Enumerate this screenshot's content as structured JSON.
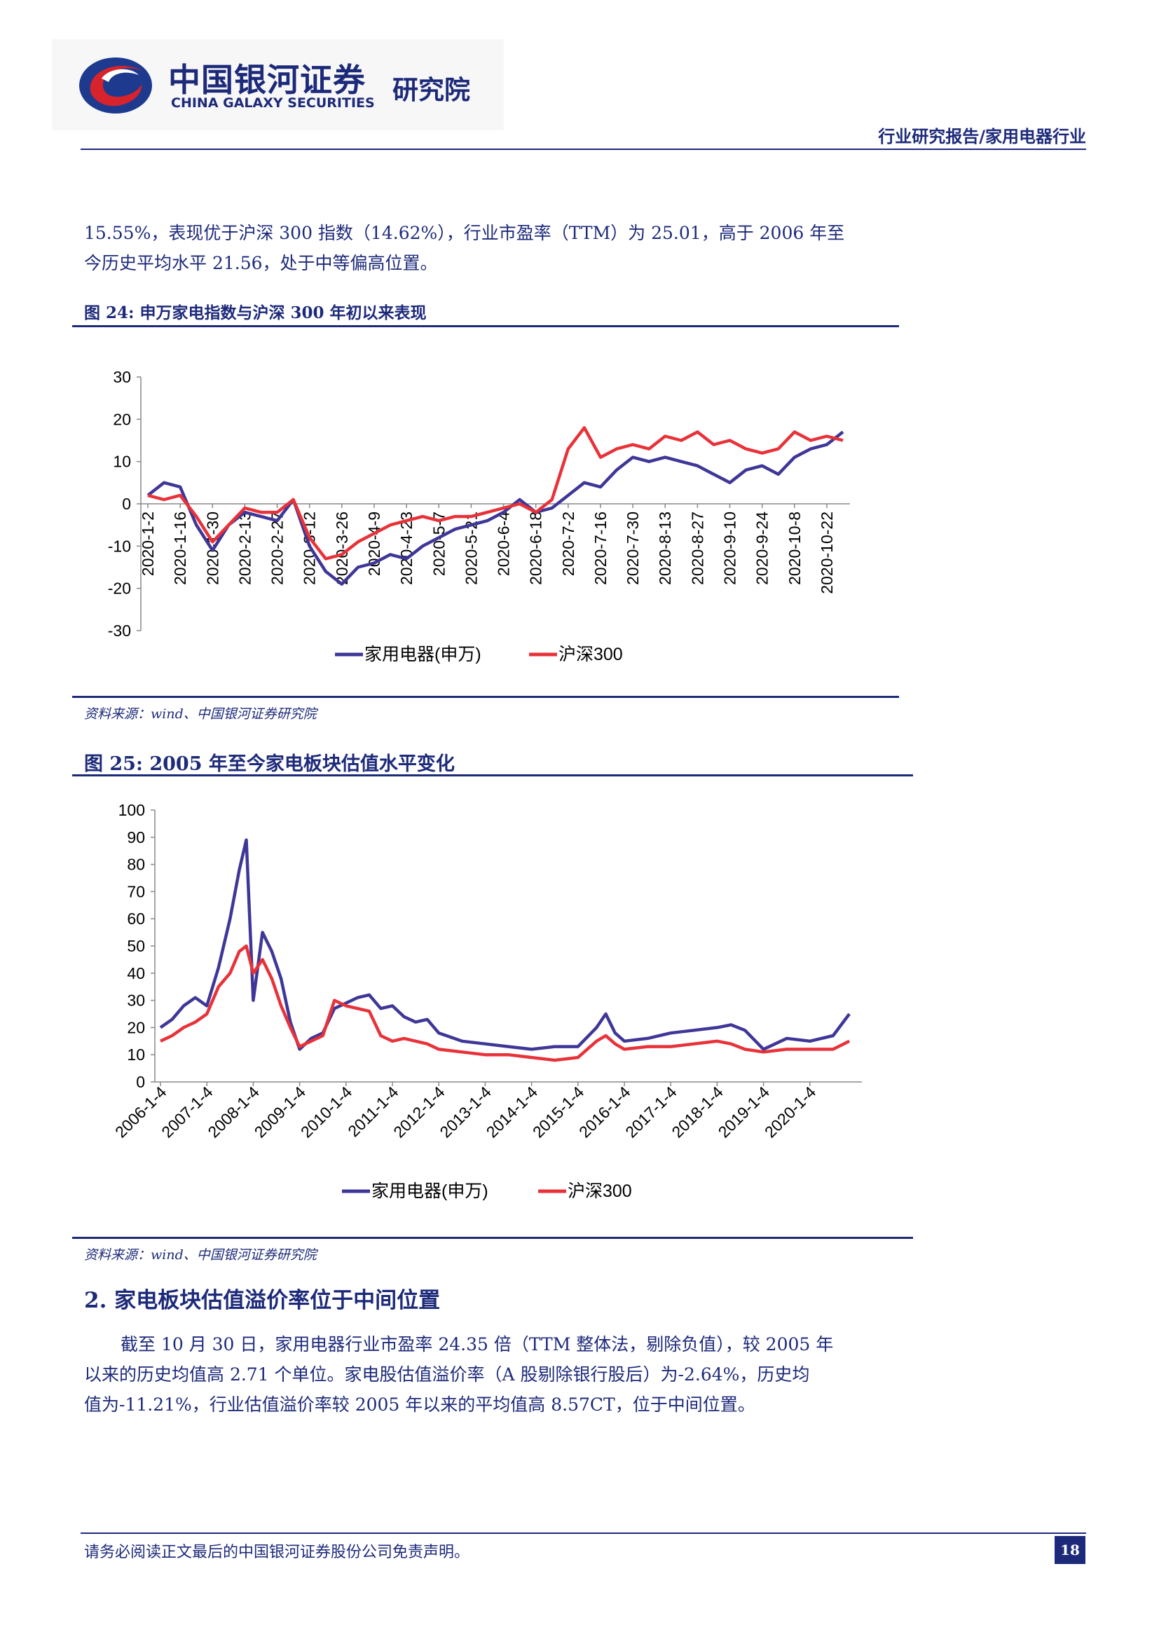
{
  "header": {
    "logo_cn": "中国银河证券",
    "logo_en": "CHINA GALAXY SECURITIES",
    "institute": "研究院",
    "report_type": "行业研究报告/家用电器行业"
  },
  "body": {
    "intro_lines": [
      "15.55%，表现优于沪深 300 指数（14.62%），行业市盈率（TTM）为 25.01，高于 2006 年至",
      "今历史平均水平 21.56，处于中等偏高位置。"
    ],
    "section_heading": "2.  家电板块估值溢价率位于中间位置",
    "section_lines": [
      "截至 10 月 30 日，家用电器行业市盈率 24.35 倍（TTM 整体法，剔除负值），较 2005 年",
      "以来的历史均值高 2.71 个单位。家电股估值溢价率（A 股剔除银行股后）为-2.64%，历史均",
      "值为-11.21%，行业估值溢价率较 2005 年以来的平均值高 8.57CT，位于中间位置。"
    ]
  },
  "figures": [
    {
      "title": "图 24:  申万家电指数与沪深 300 年初以来表现",
      "source": "资料来源：wind、中国银河证券研究院"
    },
    {
      "title": "图 25:  2005 年至今家电板块估值水平变化",
      "source": "资料来源：wind、中国银河证券研究院"
    }
  ],
  "colors": {
    "navy": "#1d2a7a",
    "series_blue": "#3f3797",
    "series_red": "#e8323a"
  },
  "chart_data": [
    {
      "type": "line",
      "title": "",
      "ylim": [
        -30,
        30
      ],
      "yticks": [
        30,
        20,
        10,
        0,
        -10,
        -20,
        -30
      ],
      "xticks": [
        "2020-1-2",
        "2020-1-16",
        "2020-1-30",
        "2020-2-13",
        "2020-2-27",
        "2020-3-12",
        "2020-3-26",
        "2020-4-9",
        "2020-4-23",
        "2020-5-7",
        "2020-5-21",
        "2020-6-4",
        "2020-6-18",
        "2020-7-2",
        "2020-7-16",
        "2020-7-30",
        "2020-8-13",
        "2020-8-27",
        "2020-9-10",
        "2020-9-24",
        "2020-10-8",
        "2020-10-22"
      ],
      "x": [
        "2020-1-2",
        "2020-1-9",
        "2020-1-16",
        "2020-1-23",
        "2020-1-30",
        "2020-2-6",
        "2020-2-13",
        "2020-2-20",
        "2020-2-27",
        "2020-3-5",
        "2020-3-12",
        "2020-3-19",
        "2020-3-26",
        "2020-4-2",
        "2020-4-9",
        "2020-4-16",
        "2020-4-23",
        "2020-4-30",
        "2020-5-7",
        "2020-5-14",
        "2020-5-21",
        "2020-5-28",
        "2020-6-4",
        "2020-6-11",
        "2020-6-18",
        "2020-6-25",
        "2020-7-2",
        "2020-7-9",
        "2020-7-16",
        "2020-7-23",
        "2020-7-30",
        "2020-8-6",
        "2020-8-13",
        "2020-8-20",
        "2020-8-27",
        "2020-9-3",
        "2020-9-10",
        "2020-9-17",
        "2020-9-24",
        "2020-10-1",
        "2020-10-8",
        "2020-10-15",
        "2020-10-22",
        "2020-10-29"
      ],
      "series": [
        {
          "name": "家用电器(申万)",
          "values": [
            2,
            5,
            4,
            -5,
            -11,
            -5,
            -2,
            -3,
            -4,
            1,
            -10,
            -16,
            -19,
            -15,
            -14,
            -12,
            -13,
            -10,
            -8,
            -6,
            -5,
            -4,
            -2,
            1,
            -2,
            -1,
            2,
            5,
            4,
            8,
            11,
            10,
            11,
            10,
            9,
            7,
            5,
            8,
            9,
            7,
            11,
            13,
            14,
            17
          ]
        },
        {
          "name": "沪深300",
          "values": [
            2,
            1,
            2,
            -3,
            -9,
            -5,
            -1,
            -2,
            -2,
            1,
            -8,
            -13,
            -12,
            -9,
            -7,
            -5,
            -4,
            -3,
            -4,
            -3,
            -3,
            -2,
            -1,
            0,
            -2,
            1,
            13,
            18,
            11,
            13,
            14,
            13,
            16,
            15,
            17,
            14,
            15,
            13,
            12,
            13,
            17,
            15,
            16,
            15
          ]
        }
      ],
      "legend": "bottom"
    },
    {
      "type": "line",
      "title": "",
      "ylim": [
        0,
        100
      ],
      "yticks": [
        100,
        90,
        80,
        70,
        60,
        50,
        40,
        30,
        20,
        10,
        0
      ],
      "xticks": [
        "2006-1-4",
        "2007-1-4",
        "2008-1-4",
        "2009-1-4",
        "2010-1-4",
        "2011-1-4",
        "2012-1-4",
        "2013-1-4",
        "2014-1-4",
        "2015-1-4",
        "2016-1-4",
        "2017-1-4",
        "2018-1-4",
        "2019-1-4",
        "2020-1-4"
      ],
      "x": [
        2006.0,
        2006.25,
        2006.5,
        2006.75,
        2007.0,
        2007.25,
        2007.5,
        2007.7,
        2007.85,
        2008.0,
        2008.2,
        2008.4,
        2008.6,
        2008.8,
        2009.0,
        2009.25,
        2009.5,
        2009.75,
        2010.0,
        2010.25,
        2010.5,
        2010.75,
        2011.0,
        2011.25,
        2011.5,
        2011.75,
        2012.0,
        2012.5,
        2013.0,
        2013.5,
        2014.0,
        2014.5,
        2015.0,
        2015.4,
        2015.6,
        2015.8,
        2016.0,
        2016.5,
        2017.0,
        2017.5,
        2018.0,
        2018.3,
        2018.6,
        2019.0,
        2019.5,
        2020.0,
        2020.5,
        2020.85
      ],
      "series": [
        {
          "name": "家用电器(申万)",
          "values": [
            20,
            23,
            28,
            31,
            28,
            42,
            60,
            78,
            89,
            30,
            55,
            48,
            38,
            22,
            12,
            16,
            18,
            27,
            29,
            31,
            32,
            27,
            28,
            24,
            22,
            23,
            18,
            15,
            14,
            13,
            12,
            13,
            13,
            20,
            25,
            18,
            15,
            16,
            18,
            19,
            20,
            21,
            19,
            12,
            16,
            15,
            17,
            25
          ]
        },
        {
          "name": "沪深300",
          "values": [
            15,
            17,
            20,
            22,
            25,
            35,
            40,
            48,
            50,
            40,
            45,
            38,
            28,
            20,
            13,
            15,
            17,
            30,
            28,
            27,
            26,
            17,
            15,
            16,
            15,
            14,
            12,
            11,
            10,
            10,
            9,
            8,
            9,
            15,
            17,
            14,
            12,
            13,
            13,
            14,
            15,
            14,
            12,
            11,
            12,
            12,
            12,
            15
          ]
        }
      ],
      "legend": "bottom"
    }
  ]
}
